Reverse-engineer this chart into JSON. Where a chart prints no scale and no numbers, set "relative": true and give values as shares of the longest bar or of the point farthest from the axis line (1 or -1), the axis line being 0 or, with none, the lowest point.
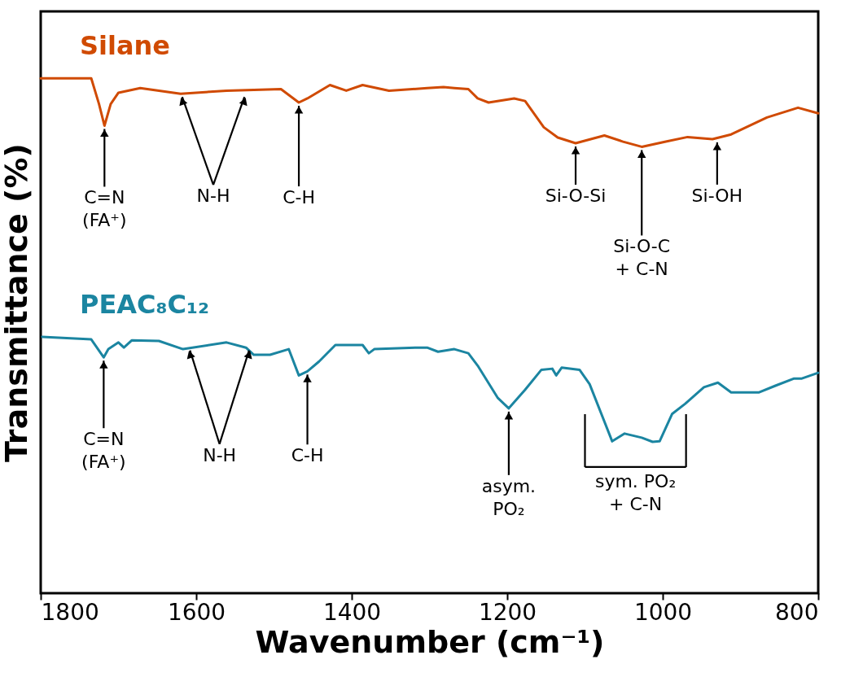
{
  "chart_data": {
    "type": "line",
    "relative": true,
    "xlabel": "Wavenumber (cm⁻¹)",
    "ylabel": "Transmittance (%)",
    "xlim": [
      1800,
      800
    ],
    "xticks": [
      1800,
      1600,
      1400,
      1200,
      1000,
      800
    ],
    "grid": false,
    "marker": "none",
    "line_style": "solid",
    "tick_labels": "x",
    "series": [
      {
        "name": "Silane",
        "color": "#d04a02",
        "x": [
          1800,
          1735,
          1725,
          1718,
          1710,
          1700,
          1672,
          1620,
          1561,
          1491,
          1468,
          1457,
          1428,
          1407,
          1386,
          1352,
          1303,
          1282,
          1268,
          1250,
          1238,
          1224,
          1191,
          1177,
          1153,
          1135,
          1112,
          1075,
          1051,
          1027,
          996,
          968,
          936,
          912,
          866,
          826,
          800
        ],
        "values": [
          1.0,
          1.0,
          0.95,
          0.908,
          0.95,
          0.972,
          0.981,
          0.97,
          0.976,
          0.979,
          0.953,
          0.961,
          0.987,
          0.976,
          0.987,
          0.976,
          0.981,
          0.983,
          0.981,
          0.979,
          0.961,
          0.953,
          0.961,
          0.956,
          0.905,
          0.885,
          0.874,
          0.889,
          0.877,
          0.867,
          0.877,
          0.886,
          0.882,
          0.891,
          0.924,
          0.943,
          0.932
        ]
      },
      {
        "name": "PEAC₈C₁₂",
        "color": "#1b85a1",
        "x": [
          1798,
          1735,
          1719,
          1713,
          1700,
          1693,
          1683,
          1648,
          1617,
          1561,
          1536,
          1526,
          1505,
          1481,
          1468,
          1457,
          1442,
          1421,
          1386,
          1378,
          1371,
          1316,
          1303,
          1289,
          1268,
          1250,
          1238,
          1212,
          1198,
          1177,
          1156,
          1142,
          1137,
          1130,
          1107,
          1094,
          1065,
          1049,
          1027,
          1013,
          1004,
          988,
          971,
          947,
          929,
          912,
          876,
          855,
          831,
          821,
          800
        ],
        "values": [
          0.498,
          0.493,
          0.458,
          0.474,
          0.487,
          0.477,
          0.491,
          0.49,
          0.474,
          0.487,
          0.477,
          0.463,
          0.463,
          0.474,
          0.423,
          0.431,
          0.45,
          0.482,
          0.482,
          0.466,
          0.474,
          0.477,
          0.477,
          0.469,
          0.474,
          0.466,
          0.442,
          0.379,
          0.359,
          0.395,
          0.434,
          0.436,
          0.423,
          0.438,
          0.434,
          0.406,
          0.295,
          0.31,
          0.302,
          0.294,
          0.295,
          0.348,
          0.368,
          0.4,
          0.409,
          0.39,
          0.39,
          0.403,
          0.417,
          0.417,
          0.428
        ]
      }
    ],
    "annotations": [
      {
        "text": "C=N\n(FA⁺)",
        "x": 1718,
        "y": 0.908
      },
      {
        "text": "N-H",
        "x": 1618,
        "y": 0.97
      },
      {
        "text": "C-H",
        "x": 1468,
        "y": 0.953
      },
      {
        "text": "Si-O-Si",
        "x": 1112,
        "y": 0.874
      },
      {
        "text": "Si-O-C\n+ C-N",
        "x": 1027,
        "y": 0.867
      },
      {
        "text": "Si-OH",
        "x": 930,
        "y": 0.882
      },
      {
        "text": "C=N\n(FA⁺)",
        "x": 1719,
        "y": 0.458
      },
      {
        "text": "N-H",
        "x": 1608,
        "y": 0.478
      },
      {
        "text": "C-H",
        "x": 1457,
        "y": 0.431
      },
      {
        "text": "asym.\nPO₂",
        "x": 1198,
        "y": 0.359
      },
      {
        "text": "sym. PO₂\n+ C-N",
        "x": 1035,
        "y": 0.294
      }
    ]
  }
}
